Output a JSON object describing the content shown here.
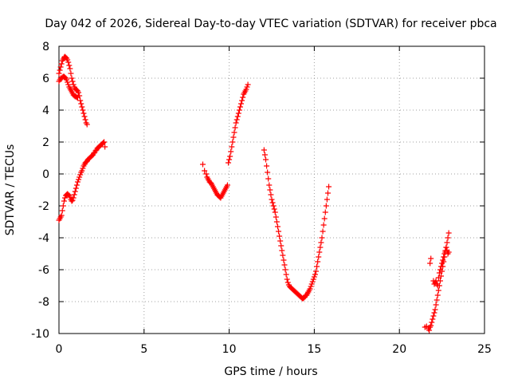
{
  "chart_data": {
    "type": "scatter",
    "title": "Day 042 of 2026, Sidereal Day-to-day VTEC variation (SDTVAR) for receiver pbca",
    "xlabel": "GPS time / hours",
    "ylabel": "SDTVAR / TECUs",
    "xlim": [
      0,
      25
    ],
    "ylim": [
      -10,
      8
    ],
    "xticks": [
      0,
      5,
      10,
      15,
      20,
      25
    ],
    "yticks": [
      -10,
      -8,
      -6,
      -4,
      -2,
      0,
      2,
      4,
      6,
      8
    ],
    "xtick_labels": [
      "0",
      "5",
      "10",
      "15",
      "20",
      "25"
    ],
    "ytick_labels": [
      "-10",
      "-8",
      "-6",
      "-4",
      "-2",
      "0",
      "2",
      "4",
      "6",
      "8"
    ],
    "grid": true,
    "marker": "+",
    "marker_color": "#ff0000",
    "series": [
      {
        "x": [
          0.0,
          0.05,
          0.1,
          0.15,
          0.2,
          0.25,
          0.3,
          0.35,
          0.4,
          0.45,
          0.5,
          0.55,
          0.6,
          0.65,
          0.7,
          0.75,
          0.8,
          0.85,
          0.9,
          0.95,
          1.0,
          1.05,
          1.1,
          1.15,
          1.2,
          1.25,
          1.3,
          1.35,
          1.4,
          1.45,
          1.5,
          1.55,
          1.6,
          1.65
        ],
        "y": [
          6.3,
          6.5,
          6.7,
          6.9,
          7.1,
          7.2,
          7.3,
          7.35,
          7.3,
          7.25,
          7.15,
          7.0,
          6.8,
          6.6,
          6.3,
          6.0,
          5.8,
          5.6,
          5.45,
          5.35,
          5.3,
          5.25,
          5.2,
          5.1,
          4.9,
          4.6,
          4.4,
          4.2,
          4.0,
          3.8,
          3.6,
          3.4,
          3.2,
          3.1
        ]
      },
      {
        "x": [
          0.0,
          0.05,
          0.1,
          0.15,
          0.2,
          0.25,
          0.3,
          0.35,
          0.4,
          0.45,
          0.5,
          0.55,
          0.6,
          0.65,
          0.7,
          0.75,
          0.8,
          0.85,
          0.9,
          0.95,
          1.0,
          1.05,
          1.1
        ],
        "y": [
          5.8,
          5.9,
          6.0,
          6.0,
          6.05,
          6.1,
          6.1,
          6.05,
          6.0,
          5.9,
          5.75,
          5.6,
          5.45,
          5.35,
          5.25,
          5.15,
          5.05,
          4.95,
          4.9,
          4.85,
          4.85,
          4.8,
          4.8
        ]
      },
      {
        "x": [
          0.0,
          0.05,
          0.1,
          0.15,
          0.2,
          0.25,
          0.3,
          0.35,
          0.4,
          0.45,
          0.5,
          0.55,
          0.6,
          0.65,
          0.7,
          0.75,
          0.8,
          0.85,
          0.9,
          0.95,
          1.0,
          1.05,
          1.1,
          1.15,
          1.2,
          1.25,
          1.3,
          1.35,
          1.4,
          1.45,
          1.5,
          1.55,
          1.6,
          1.65,
          1.7,
          1.75,
          1.8,
          1.85,
          1.9,
          1.95,
          2.0,
          2.05,
          2.1,
          2.15,
          2.2,
          2.25,
          2.3,
          2.35,
          2.4,
          2.45,
          2.5,
          2.55,
          2.6,
          2.65,
          2.7
        ],
        "y": [
          -2.9,
          -2.8,
          -2.7,
          -2.6,
          -2.3,
          -2.0,
          -1.7,
          -1.5,
          -1.35,
          -1.3,
          -1.25,
          -1.3,
          -1.35,
          -1.45,
          -1.6,
          -1.7,
          -1.65,
          -1.5,
          -1.3,
          -1.1,
          -0.9,
          -0.7,
          -0.5,
          -0.35,
          -0.2,
          -0.05,
          0.1,
          0.2,
          0.35,
          0.5,
          0.6,
          0.7,
          0.75,
          0.8,
          0.9,
          0.95,
          1.0,
          1.05,
          1.1,
          1.15,
          1.2,
          1.3,
          1.35,
          1.45,
          1.5,
          1.6,
          1.65,
          1.7,
          1.75,
          1.8,
          1.85,
          1.9,
          1.95,
          2.0,
          1.7
        ]
      },
      {
        "x": [
          8.45,
          8.55,
          8.65,
          8.7,
          8.75,
          8.8,
          8.85,
          8.9,
          8.95,
          9.0,
          9.05,
          9.1,
          9.15,
          9.2,
          9.25,
          9.3,
          9.35,
          9.4,
          9.45,
          9.5,
          9.55,
          9.6,
          9.65,
          9.7,
          9.75,
          9.8,
          9.85,
          9.9
        ],
        "y": [
          0.6,
          0.2,
          0.0,
          -0.2,
          -0.3,
          -0.4,
          -0.5,
          -0.55,
          -0.6,
          -0.7,
          -0.8,
          -0.9,
          -1.0,
          -1.1,
          -1.2,
          -1.3,
          -1.35,
          -1.4,
          -1.45,
          -1.5,
          -1.4,
          -1.3,
          -1.2,
          -1.1,
          -1.0,
          -0.9,
          -0.8,
          -0.7
        ]
      },
      {
        "x": [
          9.95,
          10.0,
          10.05,
          10.1,
          10.15,
          10.2,
          10.25,
          10.3,
          10.35,
          10.4,
          10.45,
          10.5,
          10.55,
          10.6,
          10.65,
          10.7,
          10.75,
          10.8,
          10.85,
          10.9,
          10.95,
          11.0,
          11.05,
          11.1
        ],
        "y": [
          0.7,
          0.9,
          1.1,
          1.4,
          1.7,
          2.0,
          2.3,
          2.6,
          2.9,
          3.2,
          3.4,
          3.6,
          3.8,
          4.0,
          4.2,
          4.4,
          4.6,
          4.8,
          5.0,
          5.1,
          5.2,
          5.3,
          5.45,
          5.6
        ]
      },
      {
        "x": [
          12.05,
          12.1,
          12.15,
          12.2,
          12.25,
          12.3,
          12.35,
          12.4,
          12.45,
          12.5,
          12.55,
          12.6,
          12.65,
          12.7,
          12.75,
          12.8,
          12.85,
          12.9,
          12.95,
          13.0,
          13.05,
          13.1,
          13.15,
          13.2,
          13.25,
          13.3,
          13.35,
          13.4,
          13.45,
          13.5,
          13.55,
          13.6,
          13.65,
          13.7,
          13.75,
          13.8,
          13.85,
          13.9,
          13.95,
          14.0,
          14.05,
          14.1,
          14.15,
          14.2,
          14.25,
          14.3,
          14.35,
          14.4,
          14.45,
          14.5
        ],
        "y": [
          1.5,
          1.2,
          0.9,
          0.5,
          0.1,
          -0.3,
          -0.7,
          -1.0,
          -1.3,
          -1.6,
          -1.8,
          -2.0,
          -2.2,
          -2.4,
          -2.7,
          -3.0,
          -3.3,
          -3.6,
          -3.9,
          -4.2,
          -4.5,
          -4.8,
          -5.1,
          -5.4,
          -5.7,
          -6.0,
          -6.3,
          -6.6,
          -6.8,
          -6.95,
          -7.05,
          -7.1,
          -7.15,
          -7.2,
          -7.25,
          -7.3,
          -7.35,
          -7.4,
          -7.45,
          -7.5,
          -7.55,
          -7.6,
          -7.65,
          -7.7,
          -7.75,
          -7.8,
          -7.8,
          -7.75,
          -7.7,
          -7.6
        ]
      },
      {
        "x": [
          14.55,
          14.6,
          14.65,
          14.7,
          14.75,
          14.8,
          14.85,
          14.9,
          14.95,
          15.0,
          15.05,
          15.1,
          15.15,
          15.2,
          15.25,
          15.3,
          15.35,
          15.4,
          15.45,
          15.5,
          15.55,
          15.6,
          15.65,
          15.7,
          15.75,
          15.8,
          15.85
        ],
        "y": [
          -7.6,
          -7.5,
          -7.4,
          -7.3,
          -7.2,
          -7.05,
          -6.9,
          -6.75,
          -6.6,
          -6.45,
          -6.3,
          -6.1,
          -5.8,
          -5.5,
          -5.2,
          -4.9,
          -4.6,
          -4.3,
          -4.0,
          -3.6,
          -3.2,
          -2.8,
          -2.4,
          -2.0,
          -1.6,
          -1.2,
          -0.8
        ]
      },
      {
        "x": [
          21.5,
          21.6,
          21.7,
          21.75,
          21.8,
          21.85,
          21.9,
          21.95,
          22.0,
          22.05,
          22.1,
          22.15,
          22.2,
          22.25,
          22.3,
          22.35,
          22.4,
          22.45,
          22.5,
          22.55,
          22.6,
          22.65,
          22.7,
          22.75,
          22.8,
          22.85,
          22.9
        ],
        "y": [
          -9.6,
          -9.55,
          -9.7,
          -9.8,
          -9.6,
          -9.5,
          -9.3,
          -9.1,
          -8.9,
          -8.7,
          -8.5,
          -8.2,
          -7.9,
          -7.6,
          -7.3,
          -7.0,
          -6.7,
          -6.4,
          -6.1,
          -5.8,
          -5.5,
          -5.2,
          -4.9,
          -4.6,
          -4.3,
          -4.0,
          -3.7
        ]
      },
      {
        "x": [
          21.8,
          21.85,
          22.0,
          22.05,
          22.1,
          22.15,
          22.2,
          22.25,
          22.3,
          22.35,
          22.4,
          22.45,
          22.5,
          22.55,
          22.6,
          22.65,
          22.7,
          22.75,
          22.8,
          22.85,
          22.9
        ],
        "y": [
          -5.6,
          -5.3,
          -6.7,
          -6.9,
          -6.8,
          -6.7,
          -6.9,
          -7.0,
          -6.5,
          -6.2,
          -6.0,
          -5.8,
          -5.6,
          -5.4,
          -5.2,
          -5.0,
          -4.8,
          -4.6,
          -4.8,
          -5.0,
          -4.9
        ]
      }
    ]
  }
}
